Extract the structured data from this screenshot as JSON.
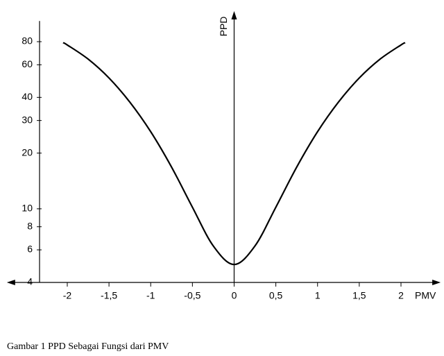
{
  "chart_data": {
    "type": "line",
    "x_label": "PMV",
    "y_label": "PPD",
    "caption": "Gambar 1 PPD Sebagai Fungsi dari PMV",
    "x": [
      -2.05,
      -2,
      -1.75,
      -1.5,
      -1.25,
      -1,
      -0.75,
      -0.5,
      -0.25,
      0,
      0.25,
      0.5,
      0.75,
      1,
      1.25,
      1.5,
      1.75,
      2,
      2.05
    ],
    "values": [
      79,
      76.8,
      64.4,
      50.9,
      37.7,
      26.1,
      16.8,
      10.2,
      6.3,
      5,
      6.3,
      10.2,
      16.8,
      26.1,
      37.7,
      50.9,
      64.4,
      76.8,
      79
    ],
    "color": "#000000",
    "xlim": [
      -2.7,
      2.45
    ],
    "xticks": [
      -2,
      {
        "value": -1.5,
        "label": "-1,5"
      },
      -1,
      {
        "value": -0.5,
        "label": "-0,5"
      },
      0,
      {
        "value": 0.5,
        "label": "0,5"
      },
      1,
      {
        "value": 1.5,
        "label": "1,5"
      },
      2
    ],
    "ylim": [
      4,
      100
    ],
    "yticks": [
      4,
      6,
      8,
      10,
      20,
      30,
      40,
      60,
      80
    ],
    "yscale": "log"
  }
}
